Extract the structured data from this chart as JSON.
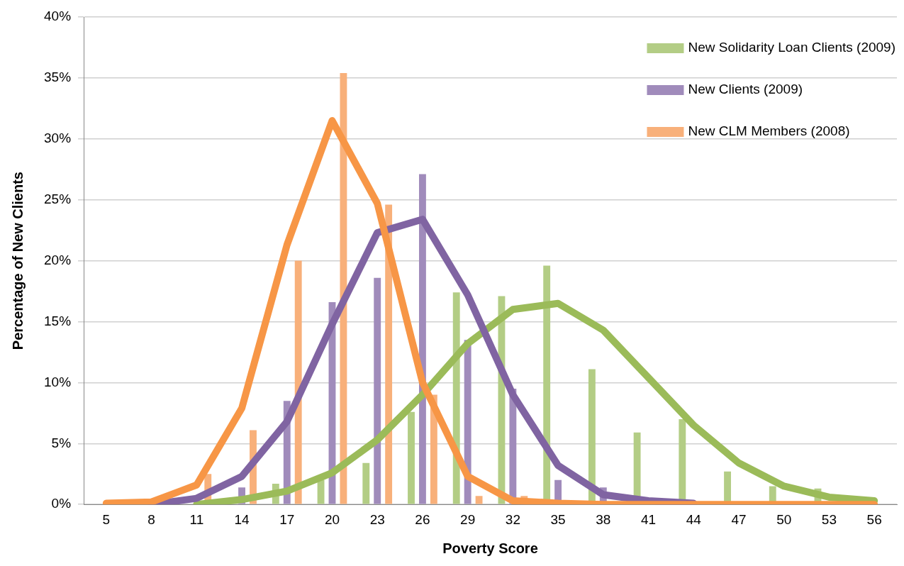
{
  "chart_data": {
    "type": "bar",
    "xlabel": "Poverty Score",
    "ylabel": "Percentage of New Clients",
    "categories": [
      "5",
      "8",
      "11",
      "14",
      "17",
      "20",
      "23",
      "26",
      "29",
      "32",
      "35",
      "38",
      "41",
      "44",
      "47",
      "50",
      "53",
      "56"
    ],
    "series": [
      {
        "name": "New Solidarity Loan Clients (2009)",
        "color": "#b3cd85",
        "values": [
          0,
          0,
          0,
          0,
          1.7,
          2.0,
          3.4,
          7.6,
          17.4,
          17.1,
          19.6,
          11.1,
          5.9,
          7.0,
          2.7,
          1.5,
          1.3,
          0
        ]
      },
      {
        "name": "New Clients (2009)",
        "color": "#a08bbb",
        "values": [
          0,
          0,
          0,
          1.4,
          8.5,
          16.6,
          18.6,
          27.1,
          13.5,
          9.5,
          2.0,
          1.4,
          0,
          0,
          0,
          0,
          0,
          0
        ]
      },
      {
        "name": "New CLM Members (2008)",
        "color": "#f8b07a",
        "values": [
          0,
          0,
          2.5,
          6.1,
          20.0,
          35.4,
          24.6,
          9.0,
          0.7,
          0.7,
          0,
          0,
          0,
          0,
          0,
          0,
          0,
          0
        ]
      },
      {
        "type": "line",
        "color": "#9bbb59",
        "values": [
          null,
          null,
          0,
          0.4,
          1.1,
          2.6,
          5.3,
          9.0,
          13.2,
          16.0,
          16.5,
          14.3,
          10.4,
          6.5,
          3.4,
          1.5,
          0.6,
          0.3
        ]
      },
      {
        "type": "line",
        "color": "#8064a2",
        "values": [
          null,
          0,
          0.5,
          2.3,
          6.8,
          14.8,
          22.3,
          23.4,
          17.2,
          9.0,
          3.2,
          0.8,
          0.3,
          0.1,
          null,
          null,
          null,
          null
        ]
      },
      {
        "type": "line",
        "color": "#f79646",
        "values": [
          0.1,
          0.2,
          1.6,
          7.9,
          21.3,
          31.5,
          24.7,
          10.0,
          2.3,
          0.3,
          0.1,
          0,
          0,
          0,
          0,
          0,
          0,
          0
        ]
      }
    ],
    "ylim": [
      0,
      40
    ],
    "yticks": [
      {
        "value": 0,
        "label": "0%"
      },
      {
        "value": 5,
        "label": "5%"
      },
      {
        "value": 10,
        "label": "10%"
      },
      {
        "value": 15,
        "label": "15%"
      },
      {
        "value": 20,
        "label": "20%"
      },
      {
        "value": 25,
        "label": "25%"
      },
      {
        "value": 30,
        "label": "30%"
      },
      {
        "value": 35,
        "label": "35%"
      },
      {
        "value": 40,
        "label": "40%"
      }
    ],
    "grid": "y",
    "legend": "top right",
    "marker": "none",
    "line_style": "solid"
  }
}
